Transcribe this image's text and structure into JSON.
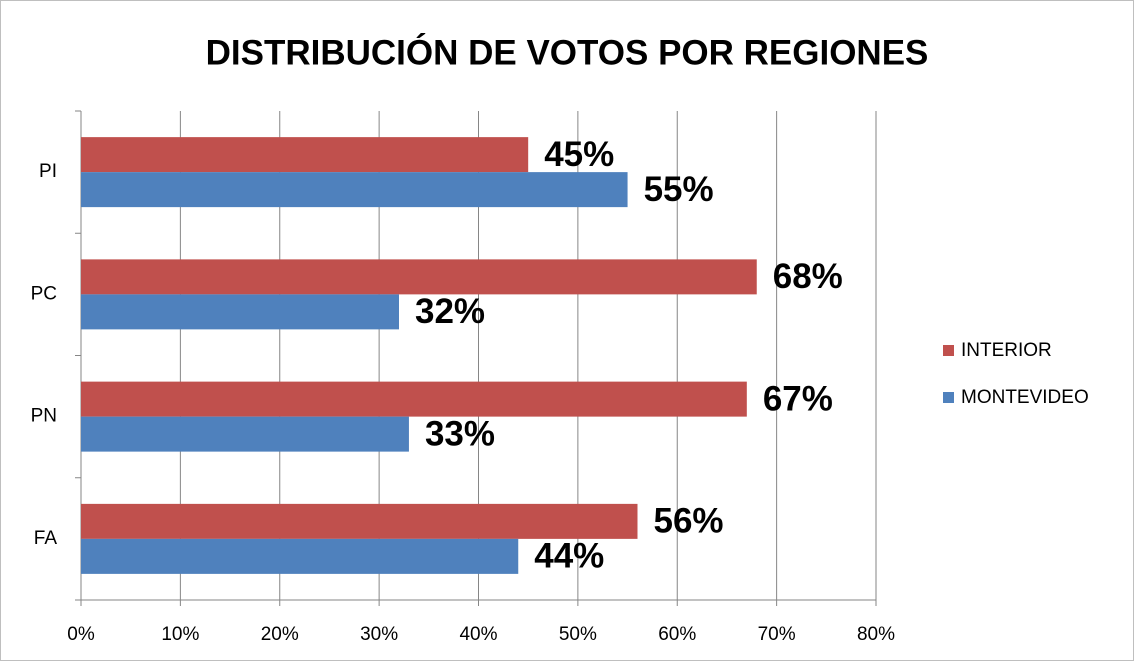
{
  "chart_data": {
    "type": "bar",
    "orientation": "horizontal",
    "title": "DISTRIBUCIÓN DE VOTOS POR REGIONES",
    "categories": [
      "FA",
      "PN",
      "PC",
      "PI"
    ],
    "series": [
      {
        "name": "INTERIOR",
        "color": "#c0504d",
        "values": [
          56,
          67,
          68,
          45
        ],
        "value_labels": [
          "56%",
          "67%",
          "68%",
          "45%"
        ]
      },
      {
        "name": "MONTEVIDEO",
        "color": "#4f81bd",
        "values": [
          44,
          33,
          32,
          55
        ],
        "value_labels": [
          "44%",
          "33%",
          "32%",
          "55%"
        ]
      }
    ],
    "xlim": [
      0,
      80
    ],
    "xticks": [
      {
        "value": 0,
        "label": "0%"
      },
      {
        "value": 10,
        "label": "10%"
      },
      {
        "value": 20,
        "label": "20%"
      },
      {
        "value": 30,
        "label": "30%"
      },
      {
        "value": 40,
        "label": "40%"
      },
      {
        "value": 50,
        "label": "50%"
      },
      {
        "value": 60,
        "label": "60%"
      },
      {
        "value": 70,
        "label": "70%"
      },
      {
        "value": 80,
        "label": "80%"
      }
    ],
    "grid": true,
    "legend": "right"
  }
}
